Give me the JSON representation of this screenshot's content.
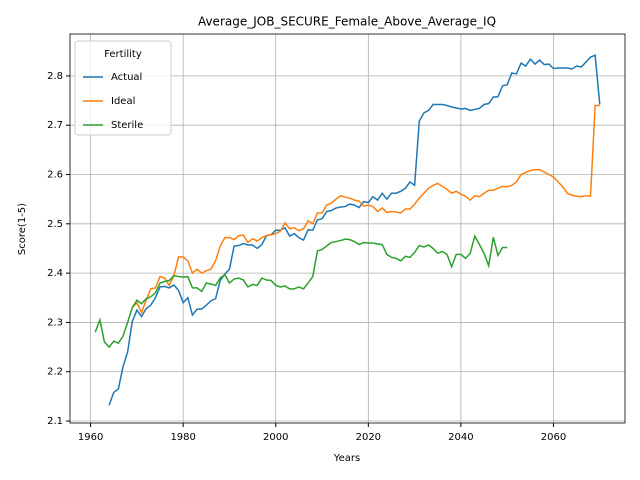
{
  "chart_data": {
    "type": "line",
    "title": "Average_JOB_SECURE_Female_Above_Average_IQ",
    "xlabel": "Years",
    "ylabel": "Score(1-5)",
    "legend_title": "Fertility",
    "legend": "upper left",
    "grid": true,
    "xlim": [
      1955.55,
      2075.45
    ],
    "xticks": [
      1960,
      1980,
      2000,
      2020,
      2040,
      2060
    ],
    "ylim": [
      2.096,
      2.885
    ],
    "yticks": [
      2.1,
      2.2,
      2.3,
      2.4,
      2.5,
      2.6,
      2.7,
      2.8
    ],
    "x": [
      1961,
      1962,
      1963,
      1964,
      1965,
      1966,
      1967,
      1968,
      1969,
      1970,
      1971,
      1972,
      1973,
      1974,
      1975,
      1976,
      1977,
      1978,
      1979,
      1980,
      1981,
      1982,
      1983,
      1984,
      1985,
      1986,
      1987,
      1988,
      1989,
      1990,
      1991,
      1992,
      1993,
      1994,
      1995,
      1996,
      1997,
      1998,
      1999,
      2000,
      2001,
      2002,
      2003,
      2004,
      2005,
      2006,
      2007,
      2008,
      2009,
      2010,
      2011,
      2012,
      2013,
      2014,
      2015,
      2016,
      2017,
      2018,
      2019,
      2020,
      2021,
      2022,
      2023,
      2024,
      2025,
      2026,
      2027,
      2028,
      2029,
      2030,
      2031,
      2032,
      2033,
      2034,
      2035,
      2036,
      2037,
      2038,
      2039,
      2040,
      2041,
      2042,
      2043,
      2044,
      2045,
      2046,
      2047,
      2048,
      2049,
      2050,
      2051,
      2052,
      2053,
      2054,
      2055,
      2056,
      2057,
      2058,
      2059,
      2060,
      2061,
      2062,
      2063,
      2064,
      2065,
      2066,
      2067,
      2068,
      2069,
      2070
    ],
    "series": [
      {
        "name": "Actual",
        "color": "#1f77b4",
        "values": [
          null,
          null,
          null,
          2.132,
          2.158,
          2.165,
          2.21,
          2.24,
          2.302,
          2.325,
          2.312,
          2.328,
          2.335,
          2.35,
          2.372,
          2.373,
          2.37,
          2.376,
          2.365,
          2.34,
          2.35,
          2.315,
          2.327,
          2.327,
          2.335,
          2.344,
          2.348,
          2.385,
          2.398,
          2.408,
          2.455,
          2.456,
          2.46,
          2.457,
          2.457,
          2.45,
          2.458,
          2.476,
          2.478,
          2.487,
          2.487,
          2.492,
          2.475,
          2.48,
          2.472,
          2.467,
          2.488,
          2.487,
          2.508,
          2.51,
          2.525,
          2.527,
          2.532,
          2.534,
          2.535,
          2.54,
          2.538,
          2.533,
          2.545,
          2.543,
          2.555,
          2.548,
          2.562,
          2.55,
          2.562,
          2.562,
          2.566,
          2.572,
          2.585,
          2.578,
          2.708,
          2.725,
          2.73,
          2.742,
          2.742,
          2.742,
          2.74,
          2.737,
          2.735,
          2.733,
          2.734,
          2.73,
          2.732,
          2.734,
          2.742,
          2.744,
          2.757,
          2.758,
          2.78,
          2.782,
          2.806,
          2.804,
          2.826,
          2.82,
          2.834,
          2.824,
          2.832,
          2.823,
          2.824,
          2.815,
          2.816,
          2.816,
          2.816,
          2.814,
          2.82,
          2.818,
          2.828,
          2.838,
          2.842,
          2.742
        ]
      },
      {
        "name": "Ideal",
        "color": "#ff7f0e",
        "values": [
          null,
          null,
          null,
          null,
          null,
          null,
          null,
          null,
          2.33,
          2.34,
          2.32,
          2.345,
          2.368,
          2.37,
          2.393,
          2.39,
          2.375,
          2.395,
          2.433,
          2.433,
          2.425,
          2.4,
          2.408,
          2.4,
          2.405,
          2.408,
          2.425,
          2.455,
          2.472,
          2.472,
          2.468,
          2.476,
          2.477,
          2.462,
          2.47,
          2.465,
          2.472,
          2.476,
          2.478,
          2.48,
          2.485,
          2.502,
          2.49,
          2.492,
          2.486,
          2.49,
          2.506,
          2.5,
          2.522,
          2.522,
          2.538,
          2.542,
          2.55,
          2.557,
          2.554,
          2.552,
          2.548,
          2.546,
          2.536,
          2.538,
          2.535,
          2.525,
          2.532,
          2.523,
          2.525,
          2.524,
          2.522,
          2.53,
          2.53,
          2.54,
          2.552,
          2.562,
          2.572,
          2.578,
          2.582,
          2.576,
          2.57,
          2.562,
          2.566,
          2.56,
          2.556,
          2.548,
          2.557,
          2.555,
          2.562,
          2.568,
          2.568,
          2.572,
          2.576,
          2.575,
          2.578,
          2.585,
          2.6,
          2.604,
          2.608,
          2.61,
          2.61,
          2.605,
          2.6,
          2.595,
          2.585,
          2.575,
          2.562,
          2.558,
          2.556,
          2.555,
          2.557,
          2.556,
          2.74,
          2.74
        ]
      },
      {
        "name": "Sterile",
        "color": "#2ca02c",
        "values": [
          2.28,
          2.305,
          2.26,
          2.25,
          2.262,
          2.258,
          2.272,
          2.3,
          2.33,
          2.345,
          2.338,
          2.348,
          2.352,
          2.36,
          2.38,
          2.383,
          2.385,
          2.395,
          2.393,
          2.392,
          2.393,
          2.37,
          2.37,
          2.363,
          2.38,
          2.378,
          2.375,
          2.39,
          2.397,
          2.38,
          2.388,
          2.39,
          2.386,
          2.372,
          2.377,
          2.375,
          2.39,
          2.386,
          2.385,
          2.375,
          2.372,
          2.374,
          2.368,
          2.368,
          2.372,
          2.368,
          2.38,
          2.393,
          2.445,
          2.448,
          2.455,
          2.462,
          2.464,
          2.466,
          2.469,
          2.468,
          2.464,
          2.458,
          2.462,
          2.461,
          2.461,
          2.459,
          2.458,
          2.438,
          2.432,
          2.43,
          2.425,
          2.434,
          2.432,
          2.442,
          2.456,
          2.453,
          2.457,
          2.45,
          2.44,
          2.444,
          2.438,
          2.413,
          2.438,
          2.438,
          2.43,
          2.44,
          2.475,
          2.458,
          2.44,
          2.415,
          2.473,
          2.436,
          2.452,
          2.452,
          null,
          null,
          null,
          null,
          null,
          null,
          null,
          null,
          null,
          null,
          null,
          null,
          null,
          null,
          null,
          null,
          null,
          null,
          null,
          null
        ]
      }
    ]
  }
}
